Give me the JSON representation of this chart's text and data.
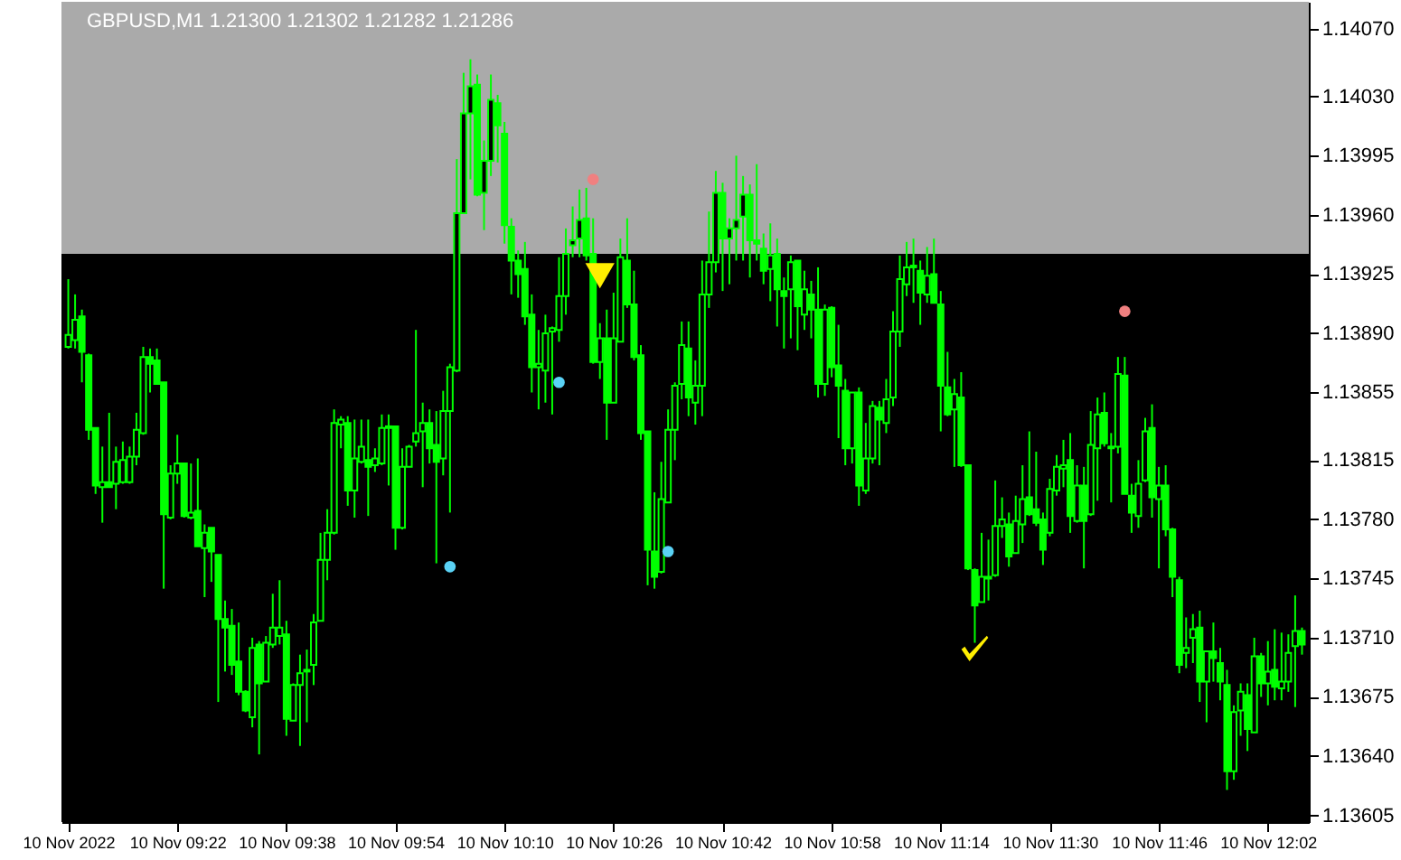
{
  "chart_data": {
    "type": "candlestick",
    "title": "GBPUSD,M1 1.21300 1.21302 1.21282 1.21286",
    "xlim": [
      "2022-11-10T09:05",
      "2022-11-10T12:08"
    ],
    "xticks": [
      {
        "value": "2022-11-10T09:06",
        "label": "10 Nov 2022"
      },
      {
        "value": "2022-11-10T09:22",
        "label": "10 Nov 09:22"
      },
      {
        "value": "2022-11-10T09:38",
        "label": "10 Nov 09:38"
      },
      {
        "value": "2022-11-10T09:54",
        "label": "10 Nov 09:54"
      },
      {
        "value": "2022-11-10T10:10",
        "label": "10 Nov 10:10"
      },
      {
        "value": "2022-11-10T10:26",
        "label": "10 Nov 10:26"
      },
      {
        "value": "2022-11-10T10:42",
        "label": "10 Nov 10:42"
      },
      {
        "value": "2022-11-10T10:58",
        "label": "10 Nov 10:58"
      },
      {
        "value": "2022-11-10T11:14",
        "label": "10 Nov 11:14"
      },
      {
        "value": "2022-11-10T11:30",
        "label": "10 Nov 11:30"
      },
      {
        "value": "2022-11-10T11:46",
        "label": "10 Nov 11:46"
      },
      {
        "value": "2022-11-10T12:02",
        "label": "10 Nov 12:02"
      }
    ],
    "ylim": [
      1.13601,
      1.14086
    ],
    "yticks": [
      {
        "value": 1.1407,
        "label": "1.14070"
      },
      {
        "value": 1.1403,
        "label": "1.14030"
      },
      1.13995,
      {
        "value": 1.1396,
        "label": "1.13960"
      },
      1.13925,
      {
        "value": 1.1389,
        "label": "1.13890"
      },
      1.13855,
      1.13815,
      {
        "value": 1.1378,
        "label": "1.13780"
      },
      1.13745,
      {
        "value": 1.1371,
        "label": "1.13710"
      },
      1.13675,
      {
        "value": 1.1364,
        "label": "1.13640"
      },
      1.13605
    ],
    "bands": [
      {
        "axis": "y",
        "from": 1.13937,
        "to": 1.14086,
        "color": "#aaaaaa"
      }
    ],
    "grid": false,
    "series": [
      {
        "type": "candlestick",
        "color": "#00ff00",
        "x": [
          "2022-11-10T09:06",
          "2022-11-10T09:07",
          "2022-11-10T09:08",
          "2022-11-10T09:09",
          "2022-11-10T09:10",
          "2022-11-10T09:11",
          "2022-11-10T09:12",
          "2022-11-10T09:13",
          "2022-11-10T09:14",
          "2022-11-10T09:15",
          "2022-11-10T09:16",
          "2022-11-10T09:17",
          "2022-11-10T09:18",
          "2022-11-10T09:19",
          "2022-11-10T09:20",
          "2022-11-10T09:21",
          "2022-11-10T09:22",
          "2022-11-10T09:23",
          "2022-11-10T09:24",
          "2022-11-10T09:25",
          "2022-11-10T09:26",
          "2022-11-10T09:27",
          "2022-11-10T09:28",
          "2022-11-10T09:29",
          "2022-11-10T09:30",
          "2022-11-10T09:31",
          "2022-11-10T09:32",
          "2022-11-10T09:33",
          "2022-11-10T09:34",
          "2022-11-10T09:35",
          "2022-11-10T09:36",
          "2022-11-10T09:37",
          "2022-11-10T09:38",
          "2022-11-10T09:39",
          "2022-11-10T09:40",
          "2022-11-10T09:41",
          "2022-11-10T09:42",
          "2022-11-10T09:43",
          "2022-11-10T09:44",
          "2022-11-10T09:45",
          "2022-11-10T09:46",
          "2022-11-10T09:47",
          "2022-11-10T09:48",
          "2022-11-10T09:49",
          "2022-11-10T09:50",
          "2022-11-10T09:51",
          "2022-11-10T09:52",
          "2022-11-10T09:53",
          "2022-11-10T09:54",
          "2022-11-10T09:55",
          "2022-11-10T09:56",
          "2022-11-10T09:57",
          "2022-11-10T09:58",
          "2022-11-10T09:59",
          "2022-11-10T10:00",
          "2022-11-10T10:01",
          "2022-11-10T10:02",
          "2022-11-10T10:03",
          "2022-11-10T10:04",
          "2022-11-10T10:05",
          "2022-11-10T10:06",
          "2022-11-10T10:07",
          "2022-11-10T10:08",
          "2022-11-10T10:09",
          "2022-11-10T10:10",
          "2022-11-10T10:11",
          "2022-11-10T10:12",
          "2022-11-10T10:13",
          "2022-11-10T10:14",
          "2022-11-10T10:15",
          "2022-11-10T10:16",
          "2022-11-10T10:17",
          "2022-11-10T10:18",
          "2022-11-10T10:19",
          "2022-11-10T10:20",
          "2022-11-10T10:21",
          "2022-11-10T10:22",
          "2022-11-10T10:23",
          "2022-11-10T10:24",
          "2022-11-10T10:25",
          "2022-11-10T10:26",
          "2022-11-10T10:27",
          "2022-11-10T10:28",
          "2022-11-10T10:29",
          "2022-11-10T10:30",
          "2022-11-10T10:31",
          "2022-11-10T10:32",
          "2022-11-10T10:33",
          "2022-11-10T10:34",
          "2022-11-10T10:35",
          "2022-11-10T10:36",
          "2022-11-10T10:37",
          "2022-11-10T10:38",
          "2022-11-10T10:39",
          "2022-11-10T10:40",
          "2022-11-10T10:41",
          "2022-11-10T10:42",
          "2022-11-10T10:43",
          "2022-11-10T10:44",
          "2022-11-10T10:45",
          "2022-11-10T10:46",
          "2022-11-10T10:47",
          "2022-11-10T10:48",
          "2022-11-10T10:49",
          "2022-11-10T10:50",
          "2022-11-10T10:51",
          "2022-11-10T10:52",
          "2022-11-10T10:53",
          "2022-11-10T10:54",
          "2022-11-10T10:55",
          "2022-11-10T10:56",
          "2022-11-10T10:57",
          "2022-11-10T10:58",
          "2022-11-10T10:59",
          "2022-11-10T11:00",
          "2022-11-10T11:01",
          "2022-11-10T11:02",
          "2022-11-10T11:03",
          "2022-11-10T11:04",
          "2022-11-10T11:05",
          "2022-11-10T11:06",
          "2022-11-10T11:07",
          "2022-11-10T11:08",
          "2022-11-10T11:09",
          "2022-11-10T11:10",
          "2022-11-10T11:11",
          "2022-11-10T11:12",
          "2022-11-10T11:13",
          "2022-11-10T11:14",
          "2022-11-10T11:15",
          "2022-11-10T11:16",
          "2022-11-10T11:17",
          "2022-11-10T11:18",
          "2022-11-10T11:19",
          "2022-11-10T11:20",
          "2022-11-10T11:21",
          "2022-11-10T11:22",
          "2022-11-10T11:23",
          "2022-11-10T11:24",
          "2022-11-10T11:25",
          "2022-11-10T11:26",
          "2022-11-10T11:27",
          "2022-11-10T11:28",
          "2022-11-10T11:29",
          "2022-11-10T11:30",
          "2022-11-10T11:31",
          "2022-11-10T11:32",
          "2022-11-10T11:33",
          "2022-11-10T11:34",
          "2022-11-10T11:35",
          "2022-11-10T11:36",
          "2022-11-10T11:37",
          "2022-11-10T11:38",
          "2022-11-10T11:39",
          "2022-11-10T11:40",
          "2022-11-10T11:41",
          "2022-11-10T11:42",
          "2022-11-10T11:43",
          "2022-11-10T11:44",
          "2022-11-10T11:45",
          "2022-11-10T11:46",
          "2022-11-10T11:47",
          "2022-11-10T11:48",
          "2022-11-10T11:49",
          "2022-11-10T11:50",
          "2022-11-10T11:51",
          "2022-11-10T11:52",
          "2022-11-10T11:53",
          "2022-11-10T11:54",
          "2022-11-10T11:55",
          "2022-11-10T11:56",
          "2022-11-10T11:57",
          "2022-11-10T11:58",
          "2022-11-10T11:59",
          "2022-11-10T12:00",
          "2022-11-10T12:01",
          "2022-11-10T12:02",
          "2022-11-10T12:03",
          "2022-11-10T12:04",
          "2022-11-10T12:05",
          "2022-11-10T12:06",
          "2022-11-10T12:07"
        ],
        "ohlc": [
          [
            1.13882,
            1.13922,
            1.13881,
            1.13889
          ],
          [
            1.13886,
            1.13913,
            1.13881,
            1.13898
          ],
          [
            1.139,
            1.13904,
            1.13861,
            1.13879
          ],
          [
            1.13877,
            1.13878,
            1.13827,
            1.13833
          ],
          [
            1.13834,
            1.13834,
            1.13795,
            1.138
          ],
          [
            1.13799,
            1.13823,
            1.13778,
            1.13802
          ],
          [
            1.13802,
            1.13843,
            1.13799,
            1.13799
          ],
          [
            1.13801,
            1.13823,
            1.13786,
            1.13814
          ],
          [
            1.13802,
            1.13826,
            1.13801,
            1.13815
          ],
          [
            1.13802,
            1.13823,
            1.13801,
            1.13817
          ],
          [
            1.13817,
            1.13843,
            1.13812,
            1.13833
          ],
          [
            1.13831,
            1.13882,
            1.1383,
            1.13876
          ],
          [
            1.13876,
            1.13881,
            1.13855,
            1.13872
          ],
          [
            1.13874,
            1.13881,
            1.1386,
            1.1386
          ],
          [
            1.13861,
            1.13861,
            1.13739,
            1.13783
          ],
          [
            1.13781,
            1.13812,
            1.1378,
            1.13807
          ],
          [
            1.13807,
            1.1383,
            1.13801,
            1.13813
          ],
          [
            1.13813,
            1.13813,
            1.13781,
            1.13782
          ],
          [
            1.13781,
            1.13813,
            1.1378,
            1.13784
          ],
          [
            1.13785,
            1.13816,
            1.13764,
            1.13764
          ],
          [
            1.13763,
            1.13777,
            1.13734,
            1.13772
          ],
          [
            1.13775,
            1.13775,
            1.13743,
            1.13761
          ],
          [
            1.13759,
            1.13759,
            1.13672,
            1.13721
          ],
          [
            1.13721,
            1.13732,
            1.1369,
            1.13716
          ],
          [
            1.13717,
            1.13727,
            1.13688,
            1.13694
          ],
          [
            1.13696,
            1.13719,
            1.13676,
            1.13678
          ],
          [
            1.13678,
            1.13679,
            1.13666,
            1.13667
          ],
          [
            1.13663,
            1.1371,
            1.13657,
            1.13704
          ],
          [
            1.13706,
            1.13708,
            1.13641,
            1.13683
          ],
          [
            1.13684,
            1.13711,
            1.13684,
            1.13707
          ],
          [
            1.13706,
            1.13736,
            1.13704,
            1.13716
          ],
          [
            1.13711,
            1.13744,
            1.13706,
            1.13716
          ],
          [
            1.13712,
            1.1372,
            1.13652,
            1.13662
          ],
          [
            1.13661,
            1.13683,
            1.13661,
            1.13682
          ],
          [
            1.13682,
            1.137,
            1.13646,
            1.13689
          ],
          [
            1.1369,
            1.13703,
            1.1366,
            1.13691
          ],
          [
            1.13694,
            1.13724,
            1.13682,
            1.13719
          ],
          [
            1.1372,
            1.13772,
            1.1372,
            1.13756
          ],
          [
            1.13756,
            1.13786,
            1.13744,
            1.13772
          ],
          [
            1.13772,
            1.13845,
            1.13771,
            1.13837
          ],
          [
            1.13836,
            1.13841,
            1.13822,
            1.13839
          ],
          [
            1.13837,
            1.13841,
            1.13788,
            1.13797
          ],
          [
            1.13797,
            1.13839,
            1.13781,
            1.13816
          ],
          [
            1.13814,
            1.13839,
            1.13813,
            1.13823
          ],
          [
            1.13815,
            1.13839,
            1.13782,
            1.13811
          ],
          [
            1.13812,
            1.13822,
            1.13808,
            1.13816
          ],
          [
            1.13813,
            1.13842,
            1.13812,
            1.13834
          ],
          [
            1.13834,
            1.13842,
            1.138,
            1.13835
          ],
          [
            1.13835,
            1.13835,
            1.13762,
            1.13775
          ],
          [
            1.13775,
            1.13822,
            1.13774,
            1.13811
          ],
          [
            1.13811,
            1.13824,
            1.13811,
            1.13823
          ],
          [
            1.13826,
            1.13892,
            1.13823,
            1.13831
          ],
          [
            1.13832,
            1.13849,
            1.13799,
            1.13837
          ],
          [
            1.13837,
            1.13845,
            1.13813,
            1.13822
          ],
          [
            1.13824,
            1.13844,
            1.13754,
            1.13814
          ],
          [
            1.13816,
            1.13856,
            1.13806,
            1.13844
          ],
          [
            1.13844,
            1.13872,
            1.13784,
            1.1387
          ],
          [
            1.13868,
            1.13993,
            1.13867,
            1.13961
          ],
          [
            1.13961,
            1.14044,
            1.13961,
            1.1402
          ],
          [
            1.1402,
            1.14052,
            1.13981,
            1.14036
          ],
          [
            1.14037,
            1.14043,
            1.13971,
            1.13972
          ],
          [
            1.13973,
            1.14004,
            1.13951,
            1.13992
          ],
          [
            1.13992,
            1.14043,
            1.13983,
            1.14028
          ],
          [
            1.14026,
            1.14031,
            1.13991,
            1.14013
          ],
          [
            1.14008,
            1.14015,
            1.13943,
            1.13954
          ],
          [
            1.13953,
            1.13958,
            1.13913,
            1.13933
          ],
          [
            1.13933,
            1.13939,
            1.13911,
            1.13925
          ],
          [
            1.13928,
            1.13944,
            1.13895,
            1.139
          ],
          [
            1.13901,
            1.13913,
            1.13855,
            1.1387
          ],
          [
            1.1387,
            1.13892,
            1.13845,
            1.13872
          ],
          [
            1.13868,
            1.13901,
            1.13849,
            1.1389
          ],
          [
            1.13891,
            1.13894,
            1.13842,
            1.13893
          ],
          [
            1.13892,
            1.13935,
            1.13885,
            1.13912
          ],
          [
            1.13912,
            1.13952,
            1.13901,
            1.13937
          ],
          [
            1.13942,
            1.13965,
            1.13935,
            1.13945
          ],
          [
            1.13946,
            1.13975,
            1.13935,
            1.13957
          ],
          [
            1.13958,
            1.13976,
            1.13933,
            1.13936
          ],
          [
            1.13937,
            1.13958,
            1.13872,
            1.13873
          ],
          [
            1.13873,
            1.13896,
            1.13863,
            1.13887
          ],
          [
            1.13887,
            1.13904,
            1.13827,
            1.13849
          ],
          [
            1.13849,
            1.13914,
            1.13849,
            1.13887
          ],
          [
            1.13885,
            1.13946,
            1.13885,
            1.13935
          ],
          [
            1.13933,
            1.13958,
            1.13905,
            1.13907
          ],
          [
            1.13907,
            1.13927,
            1.13874,
            1.13876
          ],
          [
            1.13877,
            1.13883,
            1.13827,
            1.13831
          ],
          [
            1.13832,
            1.13832,
            1.13741,
            1.13762
          ],
          [
            1.13761,
            1.13796,
            1.13739,
            1.13746
          ],
          [
            1.13749,
            1.13814,
            1.13748,
            1.13792
          ],
          [
            1.1379,
            1.13845,
            1.1379,
            1.13833
          ],
          [
            1.13833,
            1.13861,
            1.13815,
            1.13859
          ],
          [
            1.1386,
            1.13897,
            1.13851,
            1.13883
          ],
          [
            1.13881,
            1.13897,
            1.13841,
            1.13852
          ],
          [
            1.13849,
            1.13874,
            1.13836,
            1.13859
          ],
          [
            1.13859,
            1.13933,
            1.13841,
            1.13913
          ],
          [
            1.13913,
            1.13962,
            1.13905,
            1.13932
          ],
          [
            1.13932,
            1.13986,
            1.13926,
            1.13973
          ],
          [
            1.13973,
            1.13979,
            1.13915,
            1.13946
          ],
          [
            1.13946,
            1.13958,
            1.13919,
            1.13952
          ],
          [
            1.13952,
            1.13995,
            1.13933,
            1.13957
          ],
          [
            1.13959,
            1.13983,
            1.13933,
            1.13972
          ],
          [
            1.13972,
            1.13978,
            1.13923,
            1.13945
          ],
          [
            1.13945,
            1.1399,
            1.13933,
            1.13943
          ],
          [
            1.1394,
            1.13949,
            1.13919,
            1.13927
          ],
          [
            1.13928,
            1.13955,
            1.13909,
            1.13936
          ],
          [
            1.13937,
            1.13946,
            1.13894,
            1.13916
          ],
          [
            1.13915,
            1.13923,
            1.13881,
            1.13912
          ],
          [
            1.13916,
            1.13936,
            1.13887,
            1.13932
          ],
          [
            1.13933,
            1.13933,
            1.1388,
            1.13906
          ],
          [
            1.13901,
            1.13927,
            1.13892,
            1.13916
          ],
          [
            1.13913,
            1.13921,
            1.13887,
            1.13904
          ],
          [
            1.13904,
            1.13929,
            1.13852,
            1.1386
          ],
          [
            1.1386,
            1.13907,
            1.13853,
            1.13904
          ],
          [
            1.13905,
            1.13906,
            1.13864,
            1.1387
          ],
          [
            1.13871,
            1.13895,
            1.13828,
            1.13859
          ],
          [
            1.13856,
            1.13863,
            1.13812,
            1.13822
          ],
          [
            1.13822,
            1.13855,
            1.13813,
            1.13855
          ],
          [
            1.13855,
            1.13858,
            1.13788,
            1.138
          ],
          [
            1.13797,
            1.13837,
            1.13795,
            1.13816
          ],
          [
            1.13816,
            1.1385,
            1.13813,
            1.13847
          ],
          [
            1.13846,
            1.1385,
            1.13812,
            1.13839
          ],
          [
            1.13837,
            1.13863,
            1.13831,
            1.13851
          ],
          [
            1.13852,
            1.13903,
            1.13847,
            1.13891
          ],
          [
            1.13891,
            1.13936,
            1.13882,
            1.13922
          ],
          [
            1.13919,
            1.13944,
            1.13912,
            1.13929
          ],
          [
            1.13929,
            1.13946,
            1.13908,
            1.1393
          ],
          [
            1.13927,
            1.13933,
            1.13895,
            1.13914
          ],
          [
            1.13913,
            1.13941,
            1.13908,
            1.13924
          ],
          [
            1.13925,
            1.13946,
            1.13908,
            1.13908
          ],
          [
            1.13907,
            1.13915,
            1.13832,
            1.13859
          ],
          [
            1.13858,
            1.13879,
            1.13841,
            1.13842
          ],
          [
            1.13845,
            1.13863,
            1.13811,
            1.13854
          ],
          [
            1.13852,
            1.13867,
            1.13811,
            1.13812
          ],
          [
            1.13812,
            1.13812,
            1.1375,
            1.13751
          ],
          [
            1.1375,
            1.13751,
            1.13707,
            1.13729
          ],
          [
            1.13731,
            1.13772,
            1.13731,
            1.13746
          ],
          [
            1.13746,
            1.13768,
            1.13732,
            1.13745
          ],
          [
            1.13747,
            1.13803,
            1.13746,
            1.13776
          ],
          [
            1.13776,
            1.13793,
            1.13769,
            1.1378
          ],
          [
            1.13777,
            1.13784,
            1.13752,
            1.13758
          ],
          [
            1.1376,
            1.13794,
            1.1376,
            1.13779
          ],
          [
            1.13777,
            1.13812,
            1.13766,
            1.13792
          ],
          [
            1.13793,
            1.13832,
            1.13782,
            1.13783
          ],
          [
            1.13786,
            1.1382,
            1.13776,
            1.13778
          ],
          [
            1.1378,
            1.13784,
            1.13753,
            1.13762
          ],
          [
            1.13772,
            1.13804,
            1.1377,
            1.13798
          ],
          [
            1.13797,
            1.13818,
            1.13794,
            1.13811
          ],
          [
            1.1381,
            1.13827,
            1.13799,
            1.13812
          ],
          [
            1.13815,
            1.13831,
            1.13772,
            1.13782
          ],
          [
            1.13779,
            1.13812,
            1.13778,
            1.138
          ],
          [
            1.138,
            1.13811,
            1.13751,
            1.13779
          ],
          [
            1.13783,
            1.13844,
            1.13782,
            1.13824
          ],
          [
            1.13822,
            1.13852,
            1.13791,
            1.13842
          ],
          [
            1.13843,
            1.13855,
            1.13823,
            1.13825
          ],
          [
            1.13823,
            1.13831,
            1.1379,
            1.13822
          ],
          [
            1.13823,
            1.13876,
            1.13819,
            1.13866
          ],
          [
            1.13865,
            1.13876,
            1.13795,
            1.13795
          ],
          [
            1.13794,
            1.13801,
            1.13772,
            1.13784
          ],
          [
            1.13782,
            1.13815,
            1.13775,
            1.13801
          ],
          [
            1.13803,
            1.1384,
            1.13802,
            1.13832
          ],
          [
            1.13834,
            1.13848,
            1.13781,
            1.13793
          ],
          [
            1.13792,
            1.13811,
            1.13751,
            1.138
          ],
          [
            1.138,
            1.13812,
            1.1377,
            1.13774
          ],
          [
            1.13774,
            1.13775,
            1.13734,
            1.13746
          ],
          [
            1.13744,
            1.13746,
            1.13689,
            1.13694
          ],
          [
            1.13701,
            1.13722,
            1.13692,
            1.13704
          ],
          [
            1.1371,
            1.13724,
            1.13695,
            1.13715
          ],
          [
            1.13716,
            1.13726,
            1.13672,
            1.13684
          ],
          [
            1.13684,
            1.13702,
            1.1366,
            1.13702
          ],
          [
            1.13702,
            1.13719,
            1.13684,
            1.13698
          ],
          [
            1.13695,
            1.13704,
            1.13673,
            1.13684
          ],
          [
            1.13682,
            1.13691,
            1.1362,
            1.13631
          ],
          [
            1.13631,
            1.1367,
            1.13626,
            1.13666
          ],
          [
            1.13667,
            1.13683,
            1.13652,
            1.13678
          ],
          [
            1.13676,
            1.13683,
            1.13643,
            1.13656
          ],
          [
            1.13654,
            1.1371,
            1.13654,
            1.13699
          ],
          [
            1.13699,
            1.13701,
            1.13675,
            1.13683
          ],
          [
            1.13683,
            1.13708,
            1.1367,
            1.1369
          ],
          [
            1.13691,
            1.13715,
            1.13673,
            1.13681
          ],
          [
            1.1368,
            1.13713,
            1.13673,
            1.13684
          ],
          [
            1.13684,
            1.13712,
            1.13678,
            1.13701
          ],
          [
            1.13705,
            1.13735,
            1.13669,
            1.13714
          ],
          [
            1.13714,
            1.13716,
            1.137,
            1.13706
          ]
        ]
      },
      {
        "type": "scatter",
        "color": "#5ad2f5",
        "marker": "circle",
        "x": [
          "2022-11-10T10:02",
          "2022-11-10T10:18",
          "2022-11-10T10:34"
        ],
        "values": [
          1.13752,
          1.13861,
          1.13761
        ]
      },
      {
        "type": "scatter",
        "color": "#f08080",
        "marker": "circle",
        "x": [
          "2022-11-10T10:23",
          "2022-11-10T11:41"
        ],
        "values": [
          1.13981,
          1.13903
        ]
      },
      {
        "type": "scatter",
        "color": "#ffee00",
        "marker": "triangle",
        "x": [
          "2022-11-10T10:24"
        ],
        "values": [
          1.13924
        ]
      },
      {
        "type": "scatter",
        "color": "#ffee00",
        "x": [
          "2022-11-10T11:19"
        ],
        "values": [
          1.13704
        ]
      }
    ]
  }
}
